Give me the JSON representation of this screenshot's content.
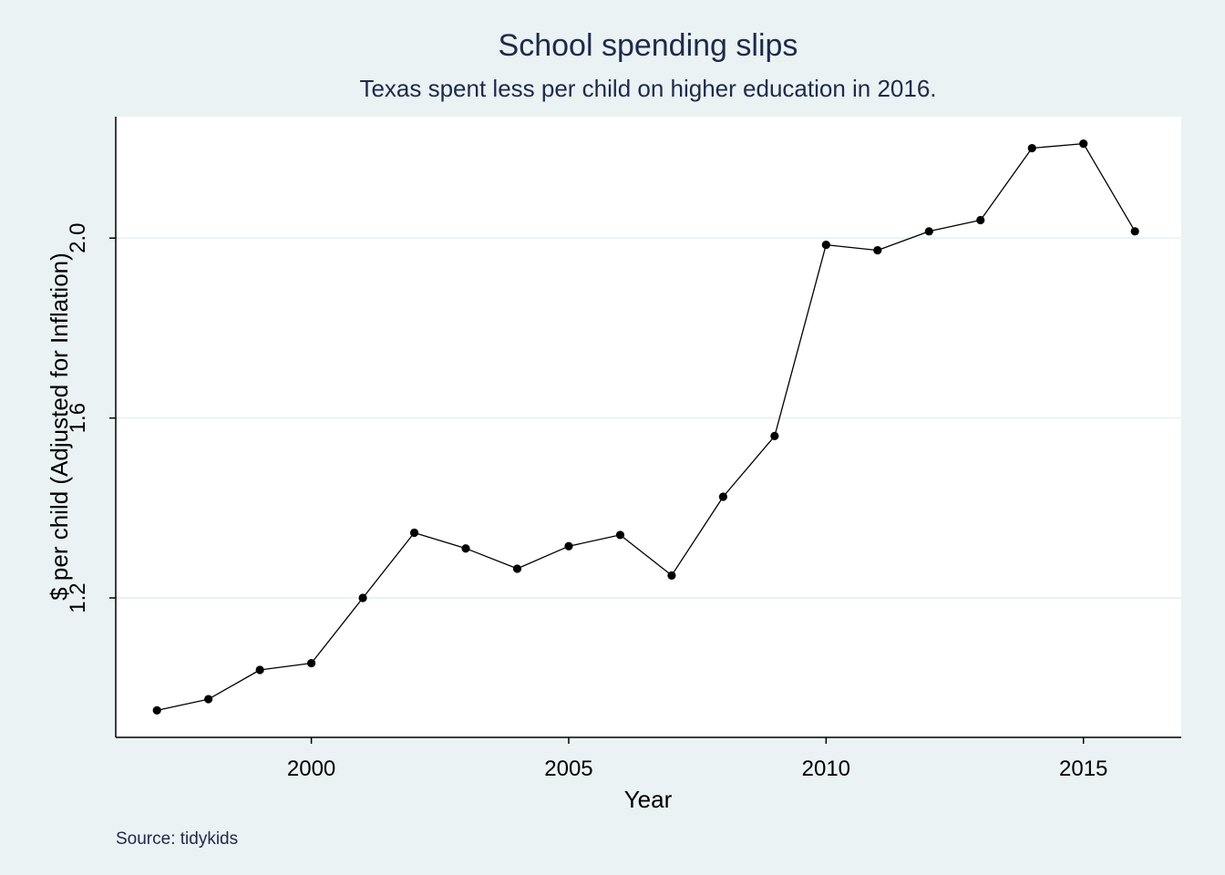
{
  "chart_data": {
    "type": "line",
    "title": "School spending slips",
    "subtitle": "Texas spent less per child on higher education in 2016.",
    "xlabel": "Year",
    "ylabel": "$ per child (Adjusted for Inflation)",
    "caption": "Source: tidykids",
    "xlim": [
      1996.2,
      2016.9
    ],
    "ylim": [
      0.89,
      2.27
    ],
    "x_ticks": [
      2000,
      2005,
      2010,
      2015
    ],
    "y_ticks": [
      1.2,
      1.6,
      2.0
    ],
    "y_tick_labels": [
      "1.2",
      "1.6",
      "2.0"
    ],
    "grid": "horizontal",
    "legend": "none",
    "line_color": "#000000",
    "plot_background": "#ffffff",
    "page_background": "#eaf2f3",
    "gridline_color": "#eaf2f3",
    "x": [
      1997,
      1998,
      1999,
      2000,
      2001,
      2002,
      2003,
      2004,
      2005,
      2006,
      2007,
      2008,
      2009,
      2010,
      2011,
      2012,
      2013,
      2014,
      2015,
      2016
    ],
    "values": [
      0.95,
      0.975,
      1.04,
      1.055,
      1.2,
      1.345,
      1.31,
      1.265,
      1.315,
      1.34,
      1.25,
      1.425,
      1.56,
      1.985,
      1.973,
      2.015,
      2.04,
      2.2,
      2.21,
      2.015
    ]
  }
}
